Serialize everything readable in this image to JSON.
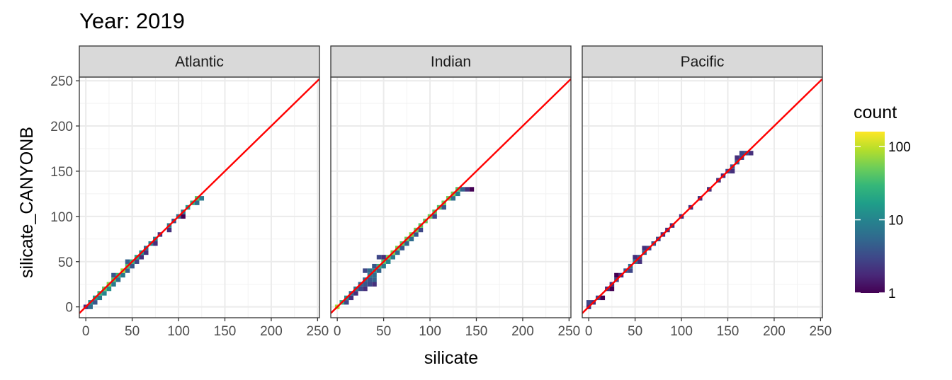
{
  "chart_data": {
    "type": "heatmap",
    "title": "Year: 2019",
    "xlabel": "silicate",
    "ylabel": "silicate_CANYONB",
    "xlim": [
      -7,
      252
    ],
    "ylim": [
      -12,
      254
    ],
    "xticks": [
      0,
      50,
      100,
      150,
      200,
      250
    ],
    "yticks": [
      0,
      50,
      100,
      150,
      200,
      250
    ],
    "grid": true,
    "reference_line": {
      "slope": 1,
      "intercept": 0,
      "color": "#ff0000"
    },
    "bin_width": 5,
    "legend": {
      "title": "count",
      "position": "right",
      "scale": "log10",
      "ticks": [
        1,
        10,
        100
      ],
      "range": [
        1,
        160
      ],
      "colors": [
        "#440154",
        "#482878",
        "#3e4989",
        "#31688e",
        "#26828e",
        "#1f9e89",
        "#35b779",
        "#6ece58",
        "#b5de2b",
        "#fde725"
      ]
    },
    "panels": [
      {
        "name": "Atlantic",
        "cells": [
          [
            0,
            0,
            2
          ],
          [
            5,
            0,
            6
          ],
          [
            5,
            5,
            12
          ],
          [
            10,
            5,
            4
          ],
          [
            10,
            10,
            18
          ],
          [
            15,
            10,
            8
          ],
          [
            15,
            15,
            30
          ],
          [
            20,
            15,
            10
          ],
          [
            20,
            20,
            45
          ],
          [
            25,
            20,
            12
          ],
          [
            25,
            25,
            60
          ],
          [
            30,
            25,
            8
          ],
          [
            30,
            30,
            40
          ],
          [
            35,
            30,
            6
          ],
          [
            35,
            35,
            30
          ],
          [
            40,
            35,
            8
          ],
          [
            40,
            40,
            80
          ],
          [
            45,
            40,
            5
          ],
          [
            45,
            45,
            40
          ],
          [
            50,
            45,
            4
          ],
          [
            50,
            50,
            30
          ],
          [
            55,
            50,
            3
          ],
          [
            55,
            55,
            20
          ],
          [
            60,
            55,
            2
          ],
          [
            60,
            60,
            15
          ],
          [
            65,
            60,
            2
          ],
          [
            65,
            65,
            6
          ],
          [
            70,
            70,
            10
          ],
          [
            75,
            70,
            2
          ],
          [
            75,
            75,
            8
          ],
          [
            80,
            80,
            2
          ],
          [
            90,
            85,
            2
          ],
          [
            90,
            90,
            8
          ],
          [
            95,
            95,
            4
          ],
          [
            100,
            100,
            6
          ],
          [
            105,
            100,
            1
          ],
          [
            105,
            105,
            8
          ],
          [
            110,
            110,
            15
          ],
          [
            115,
            115,
            25
          ],
          [
            120,
            120,
            40
          ],
          [
            120,
            115,
            6
          ],
          [
            125,
            120,
            8
          ],
          [
            30,
            35,
            4
          ],
          [
            45,
            50,
            5
          ]
        ]
      },
      {
        "name": "Indian",
        "cells": [
          [
            0,
            0,
            80
          ],
          [
            5,
            5,
            25
          ],
          [
            10,
            5,
            3
          ],
          [
            10,
            10,
            12
          ],
          [
            15,
            10,
            2
          ],
          [
            15,
            15,
            6
          ],
          [
            20,
            15,
            2
          ],
          [
            20,
            20,
            8
          ],
          [
            25,
            20,
            3
          ],
          [
            25,
            25,
            5
          ],
          [
            30,
            25,
            4
          ],
          [
            30,
            30,
            6
          ],
          [
            35,
            30,
            4
          ],
          [
            35,
            35,
            8
          ],
          [
            40,
            30,
            5
          ],
          [
            40,
            35,
            6
          ],
          [
            40,
            40,
            12
          ],
          [
            45,
            40,
            5
          ],
          [
            45,
            45,
            30
          ],
          [
            50,
            45,
            8
          ],
          [
            50,
            50,
            40
          ],
          [
            55,
            50,
            10
          ],
          [
            55,
            55,
            50
          ],
          [
            60,
            55,
            8
          ],
          [
            60,
            60,
            60
          ],
          [
            65,
            60,
            6
          ],
          [
            65,
            65,
            55
          ],
          [
            70,
            65,
            4
          ],
          [
            70,
            70,
            45
          ],
          [
            75,
            70,
            5
          ],
          [
            75,
            75,
            50
          ],
          [
            80,
            75,
            6
          ],
          [
            80,
            80,
            60
          ],
          [
            85,
            80,
            4
          ],
          [
            85,
            85,
            50
          ],
          [
            90,
            85,
            3
          ],
          [
            90,
            90,
            40
          ],
          [
            95,
            95,
            45
          ],
          [
            100,
            100,
            50
          ],
          [
            105,
            100,
            3
          ],
          [
            105,
            105,
            40
          ],
          [
            110,
            110,
            40
          ],
          [
            115,
            110,
            4
          ],
          [
            115,
            115,
            50
          ],
          [
            120,
            120,
            50
          ],
          [
            125,
            120,
            6
          ],
          [
            125,
            125,
            55
          ],
          [
            130,
            125,
            8
          ],
          [
            130,
            130,
            40
          ],
          [
            135,
            130,
            5
          ],
          [
            140,
            130,
            2
          ],
          [
            145,
            130,
            1
          ],
          [
            30,
            40,
            3
          ],
          [
            35,
            40,
            6
          ],
          [
            40,
            45,
            4
          ],
          [
            45,
            55,
            3
          ],
          [
            50,
            55,
            2
          ],
          [
            30,
            20,
            2
          ],
          [
            35,
            25,
            3
          ],
          [
            40,
            25,
            2
          ]
        ]
      },
      {
        "name": "Pacific",
        "cells": [
          [
            0,
            5,
            3
          ],
          [
            5,
            5,
            2
          ],
          [
            10,
            10,
            3
          ],
          [
            15,
            10,
            1
          ],
          [
            20,
            20,
            2
          ],
          [
            25,
            20,
            1
          ],
          [
            25,
            25,
            2
          ],
          [
            30,
            30,
            3
          ],
          [
            35,
            35,
            2
          ],
          [
            40,
            40,
            4
          ],
          [
            45,
            40,
            3
          ],
          [
            45,
            45,
            6
          ],
          [
            50,
            50,
            8
          ],
          [
            55,
            50,
            2
          ],
          [
            55,
            55,
            4
          ],
          [
            60,
            60,
            5
          ],
          [
            65,
            65,
            3
          ],
          [
            70,
            70,
            4
          ],
          [
            75,
            75,
            3
          ],
          [
            80,
            80,
            2
          ],
          [
            85,
            85,
            2
          ],
          [
            90,
            90,
            2
          ],
          [
            100,
            100,
            2
          ],
          [
            110,
            110,
            2
          ],
          [
            120,
            120,
            2
          ],
          [
            130,
            130,
            2
          ],
          [
            140,
            140,
            2
          ],
          [
            145,
            145,
            2
          ],
          [
            150,
            150,
            3
          ],
          [
            155,
            155,
            4
          ],
          [
            160,
            160,
            5
          ],
          [
            165,
            165,
            3
          ],
          [
            170,
            170,
            4
          ],
          [
            175,
            170,
            2
          ],
          [
            155,
            150,
            2
          ],
          [
            160,
            165,
            2
          ],
          [
            165,
            170,
            3
          ],
          [
            0,
            0,
            2
          ],
          [
            50,
            55,
            2
          ],
          [
            60,
            65,
            2
          ],
          [
            30,
            35,
            1
          ]
        ]
      }
    ]
  }
}
